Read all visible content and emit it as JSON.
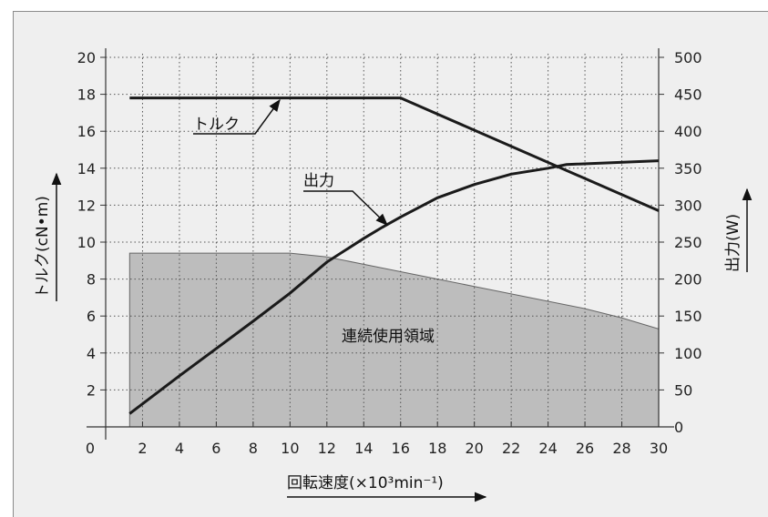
{
  "chart_data": {
    "type": "line",
    "xlabel": "回転速度(×10³min⁻¹)",
    "ylabel_left": "トルク(cN•m)",
    "ylabel_right": "出力(W)",
    "xlim": [
      0,
      30
    ],
    "ylim_left": [
      0,
      20
    ],
    "ylim_right": [
      0,
      500
    ],
    "x_ticks": [
      "0",
      "2",
      "4",
      "6",
      "8",
      "10",
      "12",
      "14",
      "16",
      "18",
      "20",
      "22",
      "24",
      "26",
      "28",
      "30"
    ],
    "y_ticks_left": [
      "2",
      "4",
      "6",
      "8",
      "10",
      "12",
      "14",
      "16",
      "18",
      "20"
    ],
    "y_ticks_right": [
      "0",
      "50",
      "100",
      "150",
      "200",
      "250",
      "300",
      "350",
      "400",
      "450",
      "500"
    ],
    "grid": true,
    "series": [
      {
        "name": "トルク",
        "axis": "left",
        "x": [
          1.3,
          16,
          30
        ],
        "y": [
          17.8,
          17.8,
          11.7
        ]
      },
      {
        "name": "出力",
        "axis": "right",
        "x": [
          1.3,
          4,
          6,
          8,
          10,
          12,
          14,
          15,
          16,
          18,
          20,
          22,
          24,
          25,
          30
        ],
        "y": [
          18,
          69,
          106,
          143,
          181,
          223,
          255,
          270,
          284,
          310,
          328,
          342,
          350,
          355,
          360
        ]
      }
    ],
    "area": {
      "name": "連続使用領域",
      "axis": "left",
      "x": [
        1.3,
        10,
        12,
        14,
        16,
        18,
        20,
        22,
        24,
        26,
        28,
        30
      ],
      "y": [
        9.4,
        9.4,
        9.2,
        8.8,
        8.4,
        8.0,
        7.6,
        7.2,
        6.8,
        6.4,
        5.9,
        5.3
      ]
    },
    "annotations": [
      "トルク",
      "出力",
      "連続使用領域"
    ]
  }
}
